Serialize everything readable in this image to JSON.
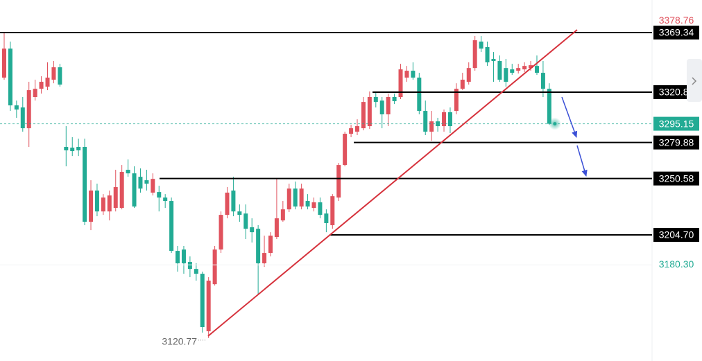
{
  "chart_data": {
    "type": "candlestick",
    "up_color": "#e0525d",
    "down_color": "#22ab94",
    "ylim": [
      3102.1,
      3395.84
    ],
    "open": [
      3332.7,
      3356.3,
      3310.1,
      3308.4,
      3291.5,
      3316.9,
      3323.6,
      3325.3,
      3331.0,
      3341.1,
      3276.3,
      3275.7,
      3276.3,
      3276.3,
      3215.4,
      3240.8,
      3223.8,
      3223.8,
      3226.7,
      3226.7,
      3257.7,
      3254.8,
      3252.0,
      3249.2,
      3239.1,
      3239.6,
      3235.1,
      3232.3,
      3191.7,
      3192.8,
      3182.7,
      3177.0,
      3173.1,
      3126.3,
      3164.6,
      3192.8,
      3221.0,
      3240.8,
      3223.8,
      3222.1,
      3210.9,
      3209.7,
      3181.6,
      3190.0,
      3203.0,
      3216.5,
      3225.5,
      3242.4,
      3227.8,
      3232.3,
      3226.7,
      3231.2,
      3222.1,
      3212.6,
      3235.1,
      3261.6,
      3287.0,
      3288.7,
      3291.5,
      3293.2,
      3316.9,
      3314.0,
      3302.8,
      3316.9,
      3316.9,
      3332.7,
      3338.3,
      3332.7,
      3305.6,
      3288.7,
      3297.1,
      3293.2,
      3304.5,
      3305.6,
      3323.6,
      3329.3,
      3340.5,
      3362.0,
      3357.5,
      3347.9,
      3346.2,
      3340.5,
      3339.4,
      3338.3,
      3339.4,
      3340.5,
      3342.2,
      3336.6,
      3323.6
    ],
    "high": [
      3369.3,
      3362.0,
      3314.0,
      3316.9,
      3329.3,
      3331.0,
      3333.8,
      3345.1,
      3346.2,
      3343.9,
      3293.2,
      3284.2,
      3283.0,
      3283.0,
      3249.2,
      3246.4,
      3237.9,
      3240.8,
      3257.7,
      3261.6,
      3266.1,
      3260.5,
      3258.8,
      3257.7,
      3254.8,
      3244.7,
      3237.9,
      3235.1,
      3195.7,
      3195.7,
      3187.2,
      3181.6,
      3174.8,
      3170.3,
      3195.7,
      3223.8,
      3243.6,
      3252.0,
      3229.5,
      3229.5,
      3218.2,
      3212.6,
      3204.1,
      3206.9,
      3250.3,
      3232.3,
      3246.4,
      3248.1,
      3246.4,
      3237.9,
      3235.1,
      3235.1,
      3225.5,
      3237.9,
      3263.3,
      3288.7,
      3294.3,
      3298.8,
      3316.9,
      3321.4,
      3321.4,
      3316.9,
      3319.7,
      3319.7,
      3343.9,
      3342.2,
      3345.1,
      3336.6,
      3314.0,
      3305.6,
      3300.0,
      3306.7,
      3308.4,
      3328.1,
      3336.6,
      3345.1,
      3366.5,
      3366.5,
      3362.0,
      3353.5,
      3350.7,
      3347.9,
      3343.9,
      3343.9,
      3345.1,
      3346.2,
      3350.7,
      3346.2,
      3328.1
    ],
    "low": [
      3331.0,
      3305.6,
      3300.0,
      3288.7,
      3276.3,
      3314.0,
      3319.7,
      3322.5,
      3328.1,
      3325.3,
      3260.5,
      3268.9,
      3268.9,
      3212.6,
      3208.6,
      3219.9,
      3221.0,
      3216.5,
      3223.8,
      3225.5,
      3252.0,
      3226.7,
      3239.1,
      3240.8,
      3236.8,
      3223.8,
      3226.7,
      3190.0,
      3174.8,
      3173.1,
      3170.3,
      3167.5,
      3125.2,
      3120.77,
      3163.5,
      3190.0,
      3218.2,
      3219.9,
      3215.4,
      3201.3,
      3198.5,
      3156.2,
      3178.7,
      3187.2,
      3201.3,
      3215.4,
      3223.3,
      3225.5,
      3225.5,
      3225.5,
      3223.8,
      3218.2,
      3206.9,
      3209.7,
      3232.3,
      3260.5,
      3284.2,
      3285.9,
      3289.8,
      3290.9,
      3308.4,
      3291.5,
      3293.2,
      3311.2,
      3315.2,
      3329.3,
      3331.0,
      3302.8,
      3285.9,
      3281.3,
      3288.7,
      3288.7,
      3287.6,
      3302.8,
      3322.5,
      3327.0,
      3338.3,
      3353.5,
      3342.2,
      3329.3,
      3329.3,
      3325.3,
      3334.9,
      3336.0,
      3337.2,
      3338.3,
      3334.9,
      3316.9,
      3294.3
    ],
    "close": [
      3356.3,
      3310.1,
      3306.7,
      3291.5,
      3322.5,
      3323.6,
      3329.3,
      3332.7,
      3341.1,
      3327.0,
      3273.5,
      3272.9,
      3273.5,
      3215.4,
      3240.8,
      3223.8,
      3235.1,
      3236.8,
      3243.6,
      3256.0,
      3254.8,
      3227.8,
      3242.4,
      3246.4,
      3250.3,
      3235.1,
      3232.3,
      3191.7,
      3181.6,
      3181.6,
      3177.0,
      3173.1,
      3129.7,
      3167.5,
      3192.8,
      3221.0,
      3239.1,
      3223.8,
      3221.0,
      3209.7,
      3206.9,
      3181.6,
      3190.0,
      3204.1,
      3218.2,
      3225.5,
      3242.4,
      3227.8,
      3242.4,
      3227.8,
      3231.2,
      3221.0,
      3214.3,
      3236.2,
      3261.6,
      3287.0,
      3291.5,
      3293.2,
      3312.9,
      3316.9,
      3312.9,
      3302.8,
      3316.9,
      3313.5,
      3339.4,
      3338.3,
      3332.7,
      3305.6,
      3288.7,
      3297.1,
      3293.2,
      3304.5,
      3293.2,
      3323.6,
      3331.0,
      3340.5,
      3363.1,
      3356.3,
      3345.1,
      3346.2,
      3331.0,
      3329.3,
      3336.6,
      3340.5,
      3342.2,
      3342.8,
      3336.6,
      3323.6,
      3295.15
    ],
    "levels": [
      3369.34,
      3320.88,
      3279.88,
      3250.58,
      {
        "value": 3204.7,
        "label": "3204.70"
      }
    ],
    "high_label": 3378.76,
    "low_label": {
      "value": 3180.3,
      "label": "3180.30"
    }
  }
}
